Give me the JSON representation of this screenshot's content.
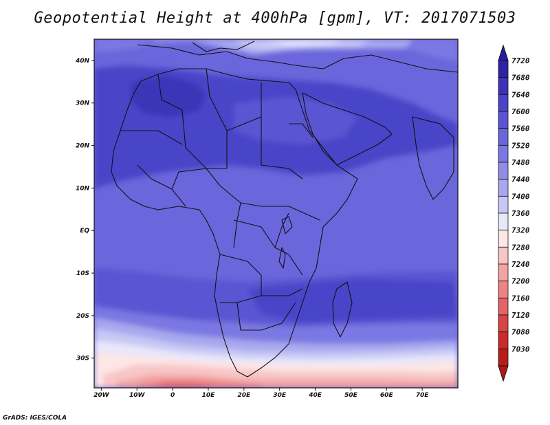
{
  "title": "Geopotential Height at 400hPa [gpm], VT: 2017071503",
  "footer": "GrADS: IGES/COLA",
  "map": {
    "lon_range": [
      -22,
      80
    ],
    "lat_range": [
      -37,
      45
    ],
    "lon_ticks": [
      {
        "value": -20,
        "label": "20W"
      },
      {
        "value": -10,
        "label": "10W"
      },
      {
        "value": 0,
        "label": "0"
      },
      {
        "value": 10,
        "label": "10E"
      },
      {
        "value": 20,
        "label": "20E"
      },
      {
        "value": 30,
        "label": "30E"
      },
      {
        "value": 40,
        "label": "40E"
      },
      {
        "value": 50,
        "label": "50E"
      },
      {
        "value": 60,
        "label": "60E"
      },
      {
        "value": 70,
        "label": "70E"
      }
    ],
    "lat_ticks": [
      {
        "value": 40,
        "label": "40N"
      },
      {
        "value": 30,
        "label": "30N"
      },
      {
        "value": 20,
        "label": "20N"
      },
      {
        "value": 10,
        "label": "10N"
      },
      {
        "value": 0,
        "label": "EQ"
      },
      {
        "value": -10,
        "label": "10S"
      },
      {
        "value": -20,
        "label": "20S"
      },
      {
        "value": -30,
        "label": "30S"
      }
    ]
  },
  "colorbar": {
    "levels": [
      "7720",
      "7680",
      "7640",
      "7600",
      "7560",
      "7520",
      "7480",
      "7440",
      "7400",
      "7360",
      "7320",
      "7280",
      "7240",
      "7200",
      "7160",
      "7120",
      "7080",
      "7030"
    ],
    "colors": [
      "#2e22a6",
      "#3b34b8",
      "#4a44c8",
      "#5a54d2",
      "#6a66db",
      "#7a78e2",
      "#8e8de8",
      "#a8a8ee",
      "#c7c8f5",
      "#e8e8fb",
      "#fde6e6",
      "#f8c6c6",
      "#f2a4a4",
      "#eb8484",
      "#e36464",
      "#d94444",
      "#cc2a2a",
      "#b81c1c"
    ],
    "top_color": "#2a1e9c",
    "bottom_color": "#b01818"
  }
}
